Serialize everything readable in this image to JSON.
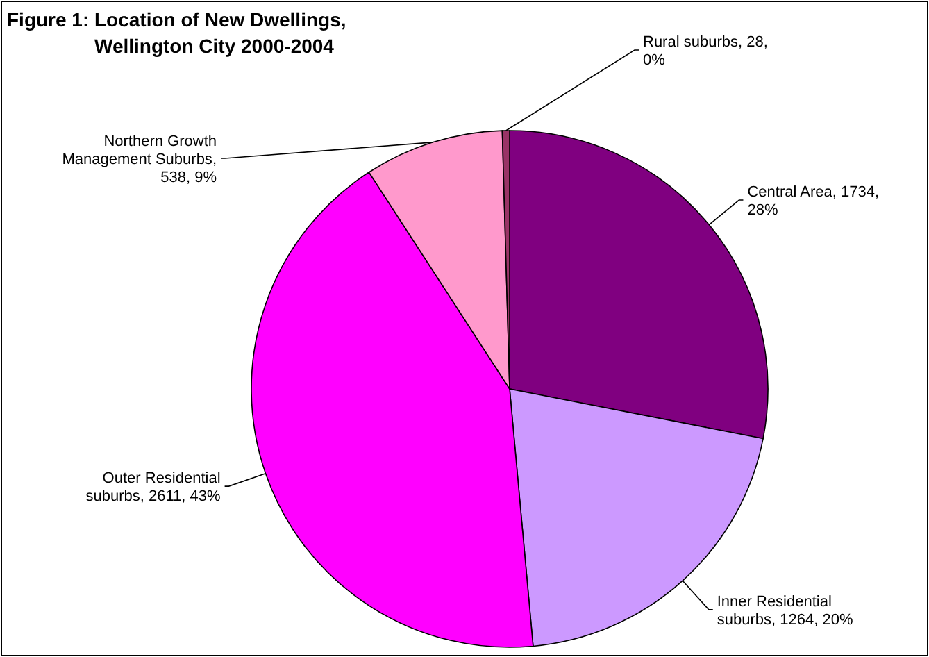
{
  "chart_data": {
    "type": "pie",
    "title": "Figure 1: Location of New Dwellings, Wellington City 2000-2004",
    "categories": [
      "Central Area",
      "Inner Residential suburbs",
      "Outer Residential suburbs",
      "Northern Growth Management Suburbs",
      "Rural suburbs"
    ],
    "values": [
      1734,
      1264,
      2611,
      538,
      28
    ],
    "value_labels": [
      ", 1734, 28%",
      ", 1264, 20%",
      ", 2611, 43%",
      ", 538, 9%",
      ", 28, 0%"
    ],
    "colors": [
      "#800080",
      "#cc99ff",
      "#ff00ff",
      "#ff99cc",
      "#993366"
    ],
    "legend": false
  }
}
